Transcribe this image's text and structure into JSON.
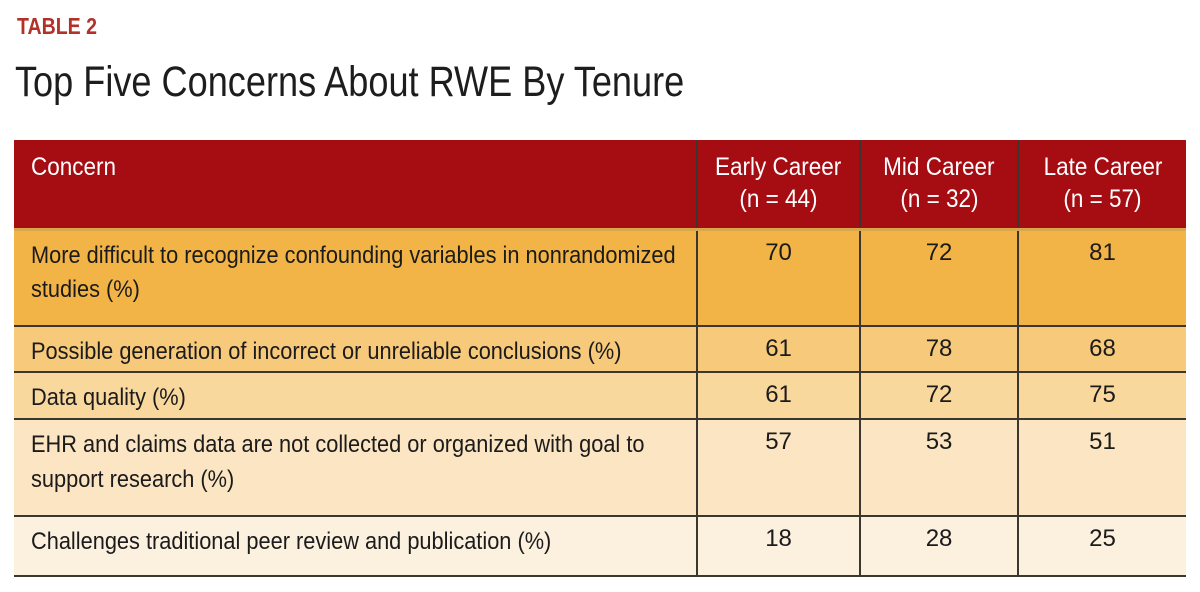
{
  "page": {
    "label": "TABLE 2",
    "title": "Top Five Concerns About RWE By Tenure"
  },
  "colors": {
    "label_red": "#B23229",
    "header_bg": "#A50D13",
    "header_text": "#FFFFFF",
    "gold_divider": "#D9A74B",
    "grid_line": "#3B362E",
    "body_text": "#1B1B1B",
    "row_backgrounds": [
      "#F2B446",
      "#F6C97B",
      "#F9D89E",
      "#FBE5C2",
      "#FCF0DF"
    ]
  },
  "chart_data": {
    "type": "table",
    "table_label": "TABLE 2",
    "title": "Top Five Concerns About RWE By Tenure",
    "columns": [
      {
        "label": "Concern",
        "sub": ""
      },
      {
        "label": "Early Career",
        "sub": "(n = 44)"
      },
      {
        "label": "Mid Career",
        "sub": "(n = 32)"
      },
      {
        "label": "Late Career",
        "sub": "(n = 57)"
      }
    ],
    "rows": [
      {
        "concern": "More difficult to recognize confounding variables in nonrandomized studies (%)",
        "values": [
          70,
          72,
          81
        ]
      },
      {
        "concern": "Possible generation of incorrect or unreliable conclusions (%)",
        "values": [
          61,
          78,
          68
        ]
      },
      {
        "concern": "Data quality (%)",
        "values": [
          61,
          72,
          75
        ]
      },
      {
        "concern": "EHR and claims data are not collected or organized with goal to support research (%)",
        "values": [
          57,
          53,
          51
        ]
      },
      {
        "concern": "Challenges traditional peer review and publication (%)",
        "values": [
          18,
          28,
          25
        ]
      }
    ]
  }
}
